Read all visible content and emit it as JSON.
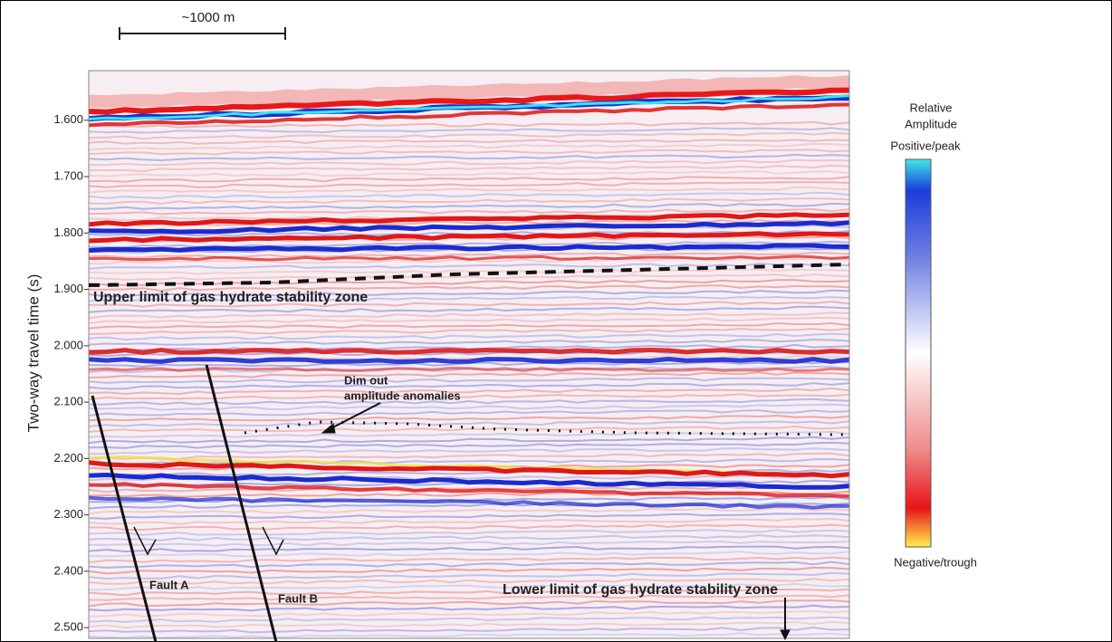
{
  "chart_data": {
    "type": "seismic-section",
    "scale_bar": "~1000 m",
    "ylabel": "Two-way travel time (s)",
    "ylim": [
      1.512,
      2.519
    ],
    "yticks": [
      {
        "value": 1.6,
        "label": "1.600"
      },
      {
        "value": 1.7,
        "label": "1.700"
      },
      {
        "value": 1.8,
        "label": "1.800"
      },
      {
        "value": 1.9,
        "label": "1.900"
      },
      {
        "value": 2.0,
        "label": "2.000"
      },
      {
        "value": 2.1,
        "label": "2.100"
      },
      {
        "value": 2.2,
        "label": "2.200"
      },
      {
        "value": 2.3,
        "label": "2.300"
      },
      {
        "value": 2.4,
        "label": "2.400"
      },
      {
        "value": 2.5,
        "label": "2.500"
      }
    ],
    "annotations": {
      "upper_limit": "Upper limit of gas hydrate stability zone",
      "dim_out": [
        "Dim out",
        "amplitude anomalies"
      ],
      "fault_a": "Fault A",
      "fault_b": "Fault B",
      "lower_limit": "Lower limit of gas hydrate stability zone"
    },
    "colorbar": {
      "title": [
        "Relative",
        "Amplitude"
      ],
      "top": "Positive/peak",
      "bottom": "Negative/trough"
    }
  }
}
